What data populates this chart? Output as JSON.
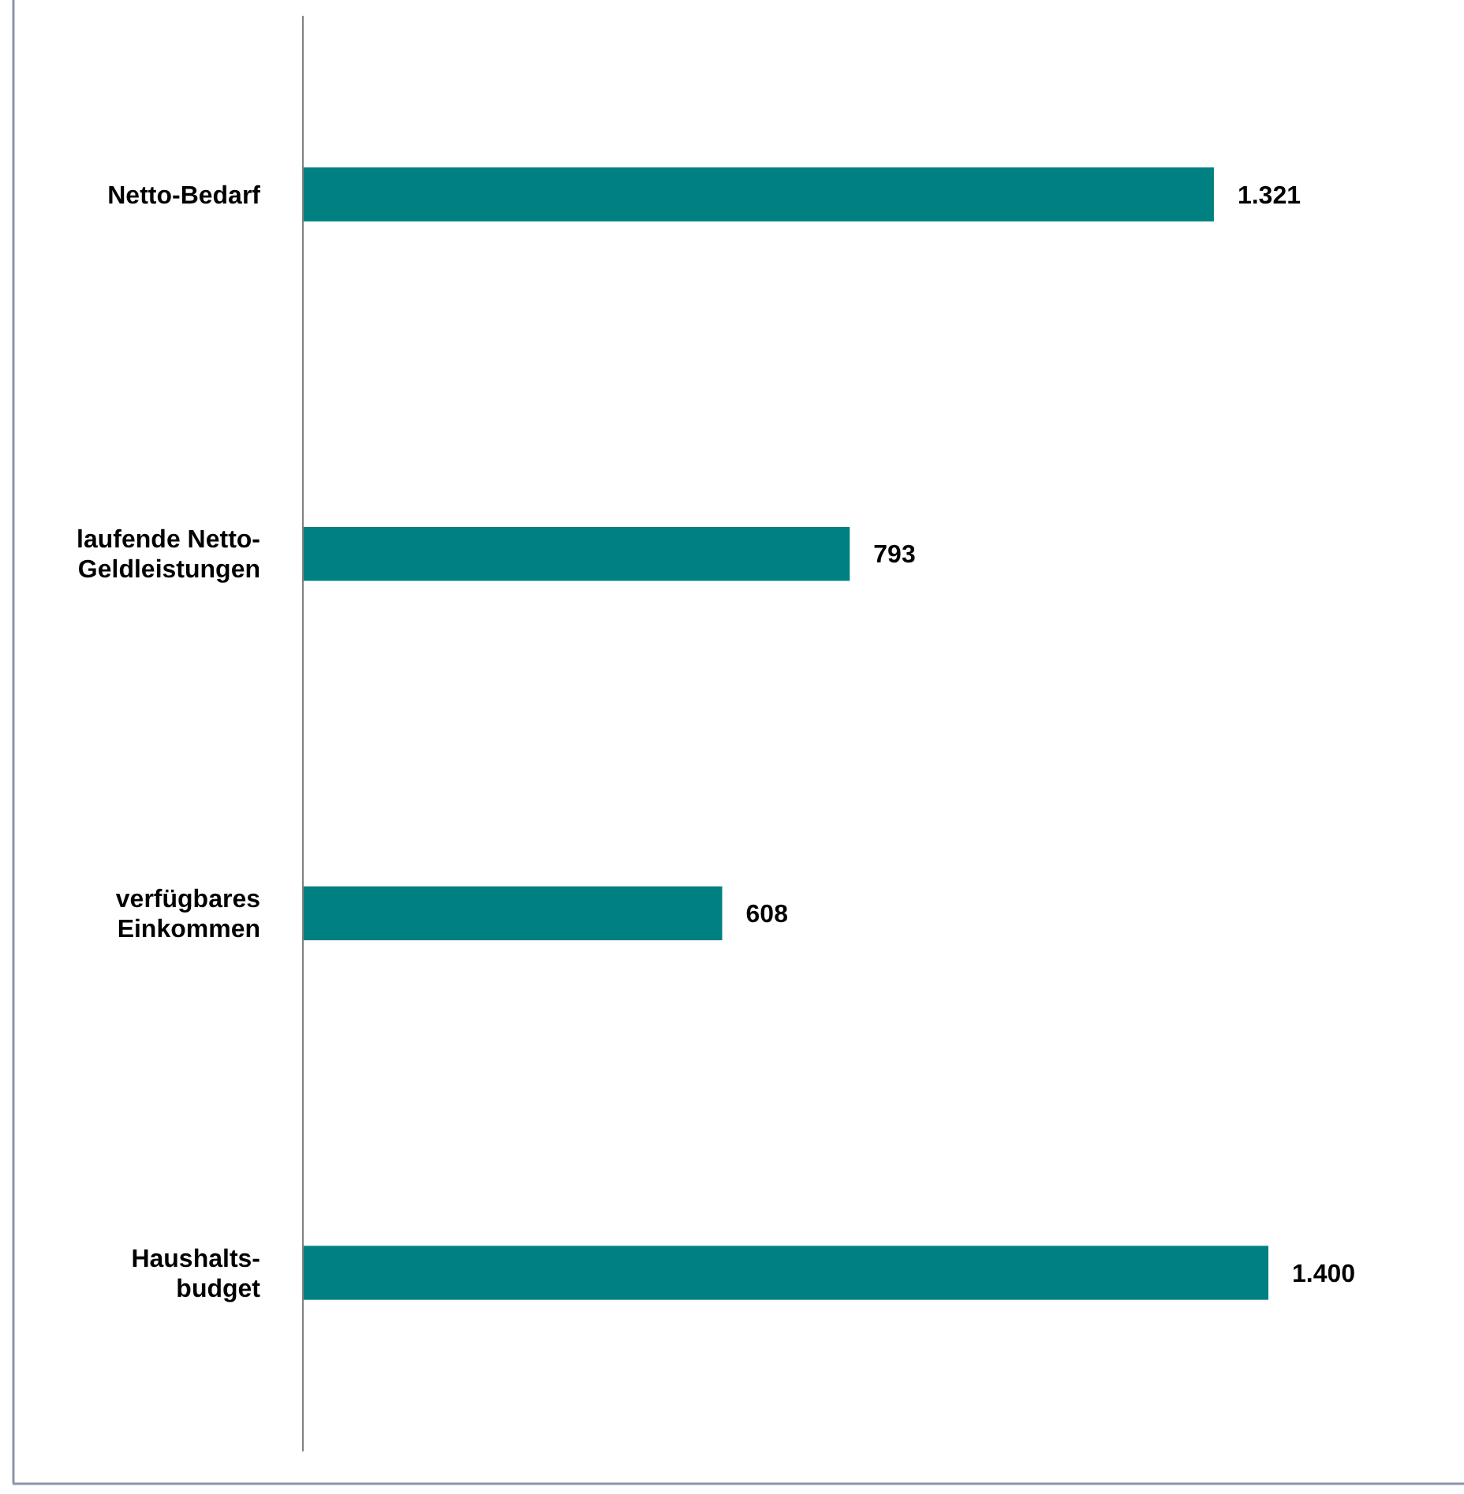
{
  "chart_data": {
    "type": "bar",
    "orientation": "horizontal",
    "categories": [
      "Netto-Bedarf",
      "laufende Netto-\nGeldleistungen",
      "verfügbares\nEinkommen",
      "Haushalts-\nbudget"
    ],
    "values": [
      1321,
      793,
      608,
      1400
    ],
    "value_labels": [
      "1.321",
      "793",
      "608",
      "1.400"
    ],
    "color": "#008080"
  }
}
